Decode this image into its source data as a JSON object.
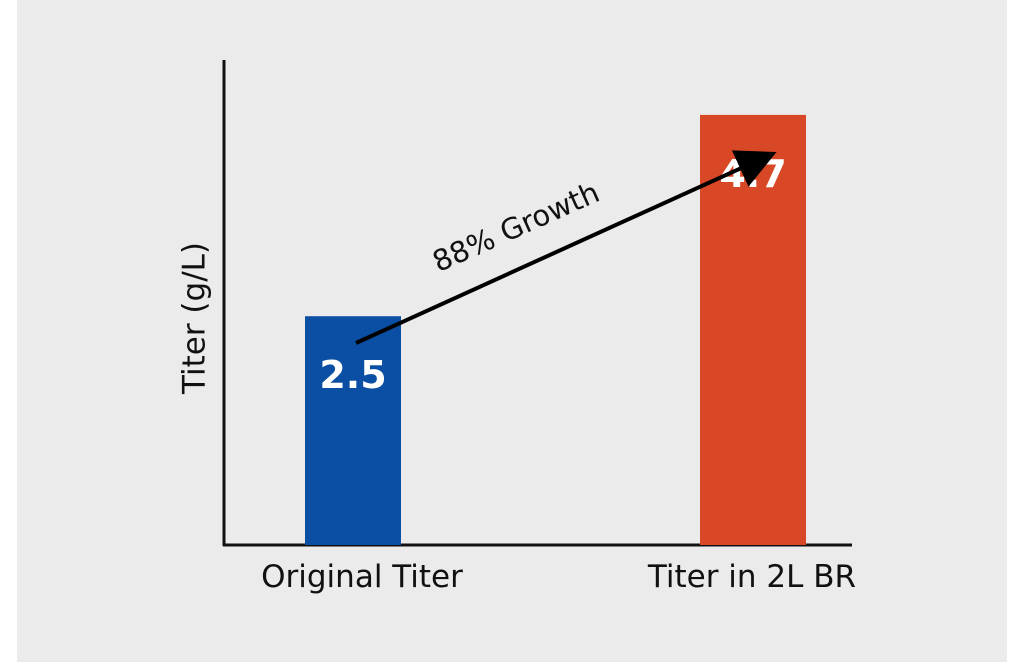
{
  "colors": {
    "background": "#ebebeb",
    "axis": "#111111",
    "arrow": "#000000"
  },
  "chart_data": {
    "type": "bar",
    "title": "",
    "xlabel": "",
    "ylabel": "Titer (g/L)",
    "categories": [
      "Original Titer",
      "Titer in 2L BR"
    ],
    "values": [
      2.5,
      4.7
    ],
    "value_labels": [
      "2.5",
      "4.7"
    ],
    "bar_colors": [
      "#0a4fa3",
      "#d94826"
    ],
    "ylim": [
      0,
      5.3
    ],
    "grid": false,
    "legend": "none",
    "annotation": {
      "text": "88% Growth",
      "type": "arrow",
      "from_category": "Original Titer",
      "to_category": "Titer in 2L BR"
    }
  }
}
